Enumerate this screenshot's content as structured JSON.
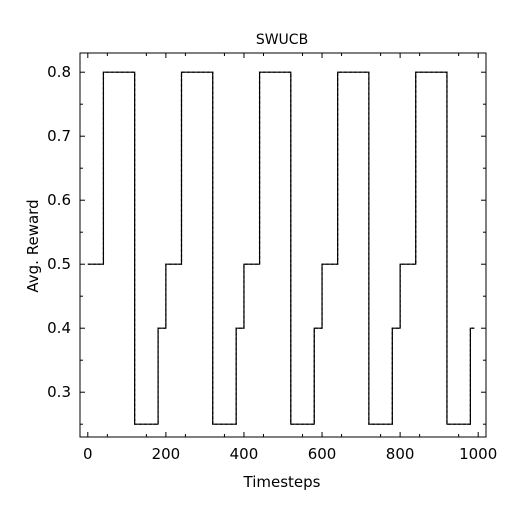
{
  "chart_data": {
    "type": "line",
    "title": "SWUCB",
    "xlabel": "Timesteps",
    "ylabel": "Avg. Reward",
    "xlim": [
      -20,
      1020
    ],
    "ylim": [
      0.23,
      0.83
    ],
    "xticks": [
      0,
      200,
      400,
      600,
      800,
      1000
    ],
    "yticks": [
      0.3,
      0.4,
      0.5,
      0.6,
      0.7,
      0.8
    ],
    "xtick_labels": [
      "0",
      "200",
      "400",
      "600",
      "800",
      "1000"
    ],
    "ytick_labels": [
      "0.3",
      "0.4",
      "0.5",
      "0.6",
      "0.7",
      "0.8"
    ],
    "grid": false,
    "series": [
      {
        "style": "solid",
        "color": "#000000",
        "step": true,
        "x": [
          0,
          40,
          120,
          180,
          200,
          240,
          320,
          380,
          400,
          440,
          520,
          580,
          600,
          640,
          720,
          780,
          800,
          840,
          920,
          980,
          990
        ],
        "y": [
          0.5,
          0.8,
          0.25,
          0.4,
          0.5,
          0.8,
          0.25,
          0.4,
          0.5,
          0.8,
          0.25,
          0.4,
          0.5,
          0.8,
          0.25,
          0.4,
          0.5,
          0.8,
          0.25,
          0.4,
          0.4
        ]
      },
      {
        "style": "dashed",
        "color": "#000000",
        "step": true,
        "x": [
          0,
          40,
          120,
          180,
          200,
          240,
          320,
          380,
          400,
          440,
          520,
          580,
          600,
          640,
          720,
          780,
          800,
          840,
          920,
          980,
          990
        ],
        "y": [
          0.5,
          0.8,
          0.25,
          0.4,
          0.5,
          0.8,
          0.25,
          0.4,
          0.5,
          0.8,
          0.25,
          0.4,
          0.5,
          0.8,
          0.25,
          0.4,
          0.5,
          0.8,
          0.25,
          0.4,
          0.4
        ]
      }
    ]
  }
}
